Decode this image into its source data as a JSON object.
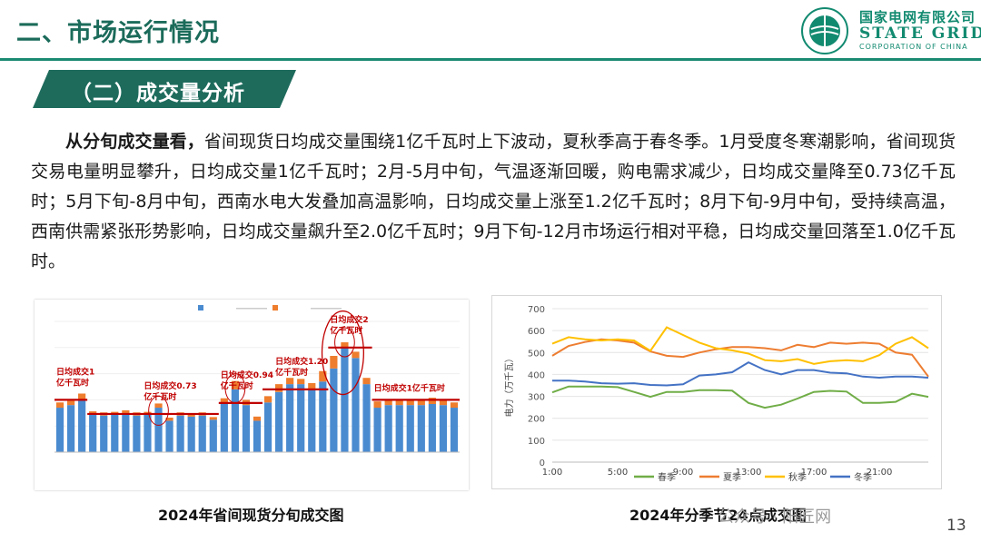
{
  "header": {
    "title": "二、市场运行情况",
    "logo": {
      "cn": "国家电网有限公司",
      "en": "STATE GRID",
      "sub": "CORPORATION OF CHINA"
    }
  },
  "section": {
    "title": "（二）成交量分析"
  },
  "paragraph": {
    "lead": "从分旬成交量看，",
    "body": "省间现货日均成交量围绕1亿千瓦时上下波动，夏秋季高于春冬季。1月受度冬寒潮影响，省间现货交易电量明显攀升，日均成交量1亿千瓦时；2月-5月中旬，气温逐渐回暖，购电需求减少，日均成交量降至0.73亿千瓦时；5月下旬-8月中旬，西南水电大发叠加高温影响，日均成交量上涨至1.2亿千瓦时；8月下旬-9月中旬，受持续高温，西南供需紧张形势影响，日均成交量飙升至2.0亿千瓦时；9月下旬-12月市场运行相对平稳，日均成交量回落至1.0亿千瓦时。"
  },
  "colors": {
    "brand": "#1b8a72",
    "band": "#1e6b5c",
    "blue": "#4a8bd0",
    "orange": "#ee7d2d",
    "red": "#c00000",
    "gray_line": "#6e9e4a"
  },
  "chart_data": [
    {
      "type": "bar",
      "title": "2024年省间现货分旬成交图",
      "stacked": true,
      "ylim": [
        0,
        2.5
      ],
      "series": [
        {
          "values": [
            0.85,
            0.9,
            1.0,
            0.72,
            0.7,
            0.72,
            0.74,
            0.7,
            0.72,
            0.85,
            0.6,
            0.7,
            0.68,
            0.7,
            0.62,
            0.95,
            1.2,
            0.9,
            0.6,
            0.95,
            1.15,
            1.3,
            1.3,
            1.2,
            1.35,
            1.6,
            2.0,
            1.8,
            1.3,
            0.85,
            0.9,
            0.9,
            0.9,
            0.9,
            0.92,
            0.9,
            0.85
          ]
        },
        {
          "values": [
            0.1,
            0.08,
            0.12,
            0.06,
            0.06,
            0.05,
            0.06,
            0.06,
            0.05,
            0.08,
            0.06,
            0.06,
            0.05,
            0.06,
            0.05,
            0.08,
            0.16,
            0.1,
            0.08,
            0.12,
            0.15,
            0.12,
            0.1,
            0.12,
            0.2,
            0.24,
            0.1,
            0.12,
            0.12,
            0.12,
            0.1,
            0.1,
            0.1,
            0.1,
            0.12,
            0.1,
            0.1
          ]
        }
      ],
      "annotations": [
        {
          "text": "日均成交1",
          "text2": "亿千瓦时",
          "avg": 1.0
        },
        {
          "text": "日均成交0.73",
          "text2": "亿千瓦时",
          "avg": 0.73
        },
        {
          "text": "日均成交0.94",
          "text2": "亿千瓦时",
          "avg": 0.94
        },
        {
          "text": "日均成交1.20",
          "text2": "亿千瓦时",
          "avg": 1.2
        },
        {
          "text": "日均成交2",
          "text2": "亿千瓦时",
          "avg": 2.0
        },
        {
          "text": "日均成交1亿千瓦时",
          "text2": "",
          "avg": 1.0
        }
      ]
    },
    {
      "type": "line",
      "title": "2024年分季节24点成交图",
      "ylabel": "电力（万千瓦）",
      "ylim": [
        0,
        700
      ],
      "yticks": [
        0,
        100,
        200,
        300,
        400,
        500,
        600,
        700
      ],
      "xticks": [
        "1:00",
        "5:00",
        "9:00",
        "13:00",
        "17:00",
        "21:00"
      ],
      "series": [
        {
          "name": "春季",
          "color": "#70ad47",
          "values": [
            318,
            345,
            345,
            345,
            342,
            320,
            298,
            320,
            320,
            328,
            328,
            326,
            270,
            248,
            262,
            290,
            320,
            325,
            322,
            270,
            270,
            275,
            312,
            298
          ]
        },
        {
          "name": "夏季",
          "color": "#ed7d31",
          "values": [
            485,
            530,
            548,
            560,
            555,
            545,
            505,
            485,
            480,
            500,
            515,
            525,
            525,
            520,
            510,
            535,
            525,
            545,
            540,
            545,
            540,
            500,
            490,
            390
          ]
        },
        {
          "name": "秋季",
          "color": "#ffc000",
          "values": [
            540,
            570,
            560,
            555,
            560,
            555,
            508,
            615,
            580,
            545,
            520,
            510,
            495,
            465,
            460,
            470,
            448,
            460,
            465,
            460,
            488,
            540,
            570,
            520
          ]
        },
        {
          "name": "冬季",
          "color": "#4472c4",
          "values": [
            372,
            372,
            368,
            360,
            358,
            360,
            352,
            350,
            355,
            395,
            400,
            410,
            455,
            420,
            400,
            420,
            420,
            408,
            405,
            390,
            385,
            390,
            390,
            385
          ]
        }
      ]
    }
  ],
  "captions": {
    "chart1": "2024年省间现货分旬成交图",
    "chart2": "2024年分季节24点成交图"
  },
  "footer": {
    "page": "13",
    "watermark": "公众号 · 阳匠网"
  }
}
